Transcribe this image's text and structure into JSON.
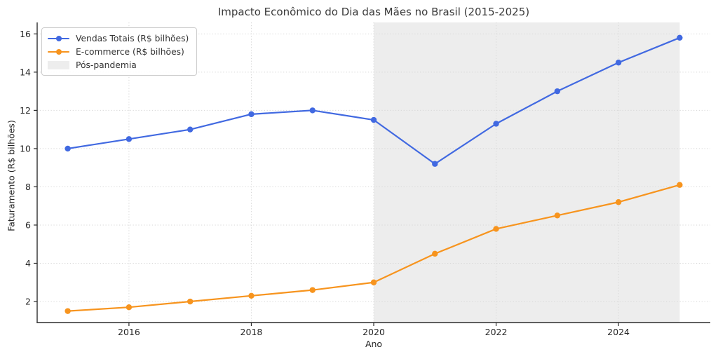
{
  "chart_data": {
    "type": "line",
    "title": "Impacto Econômico do Dia das Mães no Brasil (2015-2025)",
    "xlabel": "Ano",
    "ylabel": "Faturamento (R$ bilhões)",
    "x": [
      2015,
      2016,
      2017,
      2018,
      2019,
      2020,
      2021,
      2022,
      2023,
      2024,
      2025
    ],
    "series": [
      {
        "name": "Vendas Totais (R$ bilhões)",
        "color": "#4169E1",
        "marker": "circle",
        "values": [
          10.0,
          10.5,
          11.0,
          11.8,
          12.0,
          11.5,
          9.2,
          11.3,
          13.0,
          14.5,
          15.8
        ]
      },
      {
        "name": "E-commerce (R$ bilhões)",
        "color": "#F7941E",
        "marker": "circle",
        "values": [
          1.5,
          1.7,
          2.0,
          2.3,
          2.6,
          3.0,
          4.5,
          5.8,
          6.5,
          7.2,
          8.1
        ]
      }
    ],
    "shaded_region": {
      "label": "Pós-pandemia",
      "from": 2020,
      "to": 2025,
      "color": "#EDEDED"
    },
    "xlim": [
      2014.5,
      2025.5
    ],
    "ylim": [
      0.9,
      16.6
    ],
    "xticks": [
      2016,
      2018,
      2020,
      2022,
      2024
    ],
    "yticks": [
      2,
      4,
      6,
      8,
      10,
      12,
      14,
      16
    ],
    "grid": true,
    "grid_style": "dotted",
    "legend_position": "upper-left",
    "colors": {
      "grid": "#D7D7D7",
      "spine": "#2D2D2D",
      "tick_label": "#262626",
      "title_text": "#3A3A3A"
    }
  }
}
